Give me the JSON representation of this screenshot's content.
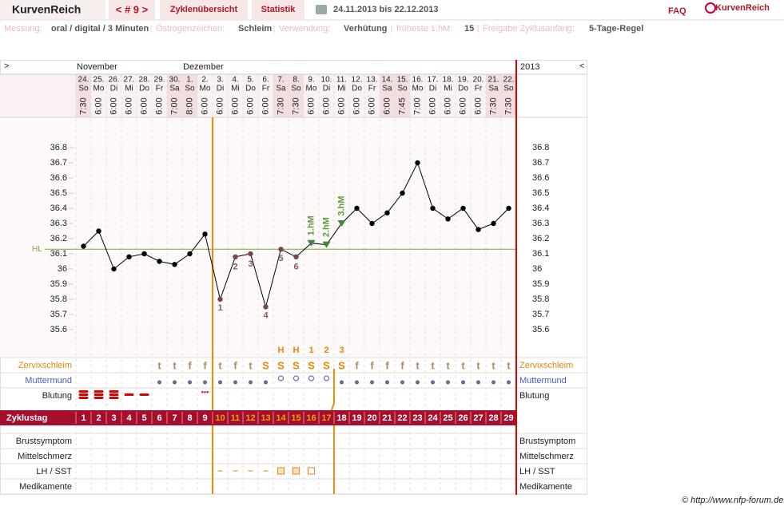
{
  "header": {
    "logo": "KurvenReich",
    "cycle_nav": "< # 9 >",
    "tabs": [
      "Zyklenübersicht",
      "Statistik"
    ],
    "range": "24.11.2013 bis 22.12.2013",
    "faq": "FAQ",
    "brand": "KurvenReich"
  },
  "info": [
    {
      "label": "Messung:",
      "value": "oral / digital / 3 Minuten"
    },
    {
      "label": "Östrogenzeichen:",
      "value": "Schleim"
    },
    {
      "label": "Verwendung:",
      "value": "Verhütung"
    },
    {
      "label": "früheste 1.hM:",
      "value": "15"
    },
    {
      "label": "Freigabe Zyklusanfang:",
      "value": "5-Tage-Regel"
    }
  ],
  "chart_data": {
    "type": "line",
    "nav_prev": ">",
    "nav_next": "<",
    "year": "2013",
    "month_labels": [
      "November",
      null,
      null,
      null,
      null,
      null,
      null,
      "Dezember",
      null,
      null,
      null,
      null,
      null,
      null,
      null,
      null,
      null,
      null,
      null,
      null,
      null,
      null,
      null,
      null,
      null,
      null,
      null,
      null,
      null
    ],
    "days": [
      "24.",
      "25.",
      "26.",
      "27.",
      "28.",
      "29.",
      "30.",
      "1.",
      "2.",
      "3.",
      "4.",
      "5.",
      "6.",
      "7.",
      "8.",
      "9.",
      "10.",
      "11.",
      "12.",
      "13.",
      "14.",
      "15.",
      "16.",
      "17.",
      "18.",
      "19.",
      "20.",
      "21.",
      "22."
    ],
    "weekdays": [
      "So",
      "Mo",
      "Di",
      "Mi",
      "Do",
      "Fr",
      "Sa",
      "So",
      "Mo",
      "Di",
      "Mi",
      "Do",
      "Fr",
      "Sa",
      "So",
      "Mo",
      "Di",
      "Mi",
      "Do",
      "Fr",
      "Sa",
      "So",
      "Mo",
      "Di",
      "Mi",
      "Do",
      "Fr",
      "Sa",
      "So"
    ],
    "times": [
      "7:30",
      "6:00",
      "6:00",
      "6:00",
      "6:00",
      "6:00",
      "7:00",
      "8:00",
      "6:00",
      "6:00",
      "6:00",
      "6:00",
      "6:00",
      "7:30",
      "7:30",
      "6:00",
      "6:00",
      "6:00",
      "6:00",
      "6:00",
      "6:00",
      "7:45",
      "7:00",
      "6:00",
      "6:00",
      "6:00",
      "6:00",
      "7:30",
      "7:30"
    ],
    "values": [
      36.15,
      36.25,
      36.0,
      36.08,
      36.1,
      36.05,
      36.03,
      36.1,
      36.23,
      35.8,
      36.08,
      36.1,
      35.75,
      36.13,
      36.08,
      36.17,
      36.16,
      36.3,
      36.4,
      36.3,
      36.37,
      36.5,
      36.7,
      36.4,
      36.33,
      36.4,
      36.26,
      36.3,
      36.4
    ],
    "color": "#000000",
    "ylim": [
      35.5,
      36.9
    ],
    "yticks": [
      35.6,
      35.7,
      35.8,
      35.9,
      36,
      36.1,
      36.2,
      36.3,
      36.4,
      36.5,
      36.6,
      36.7,
      36.8
    ],
    "hl": {
      "label": "HL",
      "value": 36.13,
      "color": "#7aa83a"
    },
    "point_labels": [
      null,
      null,
      null,
      null,
      null,
      null,
      null,
      null,
      null,
      "1",
      "2",
      "3",
      "4",
      "5",
      "6",
      null,
      null,
      null,
      null,
      null,
      null,
      null,
      null,
      null,
      null,
      null,
      null,
      null,
      null
    ],
    "hm_labels": [
      null,
      null,
      null,
      null,
      null,
      null,
      null,
      null,
      null,
      null,
      null,
      null,
      null,
      null,
      null,
      "1.hM",
      "2.hM",
      "3.hM",
      null,
      null,
      null,
      null,
      null,
      null,
      null,
      null,
      null,
      null,
      null
    ],
    "mucus": {
      "label": "Zervixschleim",
      "values": [
        null,
        null,
        null,
        null,
        null,
        "t",
        "t",
        "f",
        "f",
        "t",
        "f",
        "t",
        "S",
        "S",
        "S",
        "S",
        "S",
        "S",
        "f",
        "f",
        "f",
        "f",
        "t",
        "t",
        "t",
        "t",
        "t",
        "t",
        "t"
      ]
    },
    "peak": [
      null,
      null,
      null,
      null,
      null,
      null,
      null,
      null,
      null,
      null,
      null,
      null,
      null,
      "H",
      "H",
      "1",
      "2",
      "3",
      null,
      null,
      null,
      null,
      null,
      null,
      null,
      null,
      null,
      null,
      null
    ],
    "cervix": {
      "label": "Muttermund"
    },
    "bleeding": {
      "label": "Blutung"
    },
    "cycle_day": {
      "label": "Zyklustag",
      "values": [
        1,
        2,
        3,
        4,
        5,
        6,
        7,
        8,
        9,
        10,
        11,
        12,
        13,
        14,
        15,
        16,
        17,
        18,
        19,
        20,
        21,
        22,
        23,
        24,
        25,
        26,
        27,
        28,
        29
      ]
    },
    "extra_rows": [
      "Brustsymptom",
      "Mittelschmerz",
      "LH / SST",
      "Medikamente"
    ]
  },
  "footer": "© http://www.nfp-forum.de"
}
